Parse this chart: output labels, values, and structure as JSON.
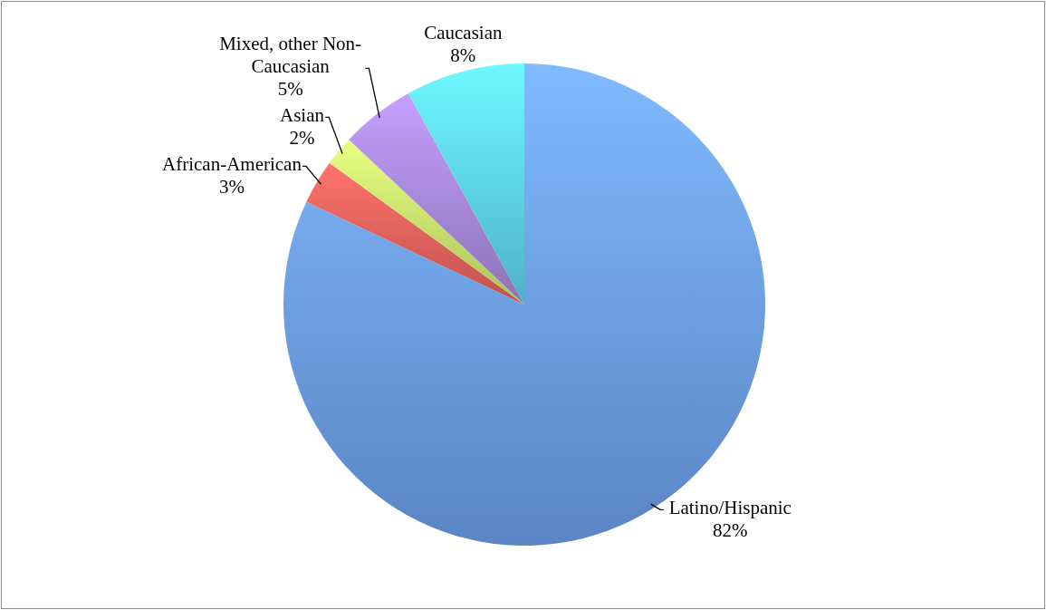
{
  "chart_data": {
    "type": "pie",
    "categories": [
      "Latino/Hispanic",
      "African-American",
      "Asian",
      "Mixed, other Non-Caucasian",
      "Caucasian"
    ],
    "values": [
      82,
      3,
      2,
      5,
      8
    ],
    "colors": [
      "#6b9ce6",
      "#e2605a",
      "#c4e46c",
      "#a486d6",
      "#5cd0ec"
    ],
    "value_labels": [
      "82%",
      "3%",
      "2%",
      "5%",
      "8%"
    ]
  }
}
